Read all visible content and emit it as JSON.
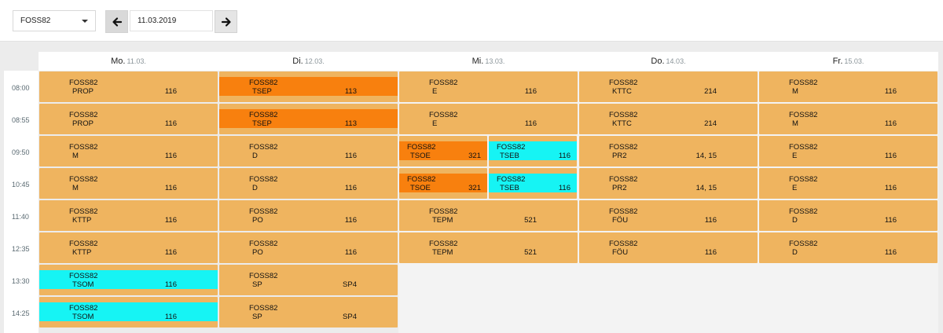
{
  "toolbar": {
    "class_select_value": "FOSS82",
    "date_value": "11.03.2019"
  },
  "days": [
    {
      "name": "Mo.",
      "date": "11.03."
    },
    {
      "name": "Di.",
      "date": "12.03."
    },
    {
      "name": "Mi.",
      "date": "13.03."
    },
    {
      "name": "Do.",
      "date": "14.03."
    },
    {
      "name": "Fr.",
      "date": "15.03."
    }
  ],
  "times": [
    "08:00",
    "08:55",
    "09:50",
    "10:45",
    "11:40",
    "12:35",
    "13:30",
    "14:25"
  ],
  "lessons": [
    {
      "day": 0,
      "slot": 0,
      "class": "FOSS82",
      "subject": "PROP",
      "room": "116",
      "color": ""
    },
    {
      "day": 0,
      "slot": 1,
      "class": "FOSS82",
      "subject": "PROP",
      "room": "116",
      "color": ""
    },
    {
      "day": 0,
      "slot": 2,
      "class": "FOSS82",
      "subject": "M",
      "room": "116",
      "color": ""
    },
    {
      "day": 0,
      "slot": 3,
      "class": "FOSS82",
      "subject": "M",
      "room": "116",
      "color": ""
    },
    {
      "day": 0,
      "slot": 4,
      "class": "FOSS82",
      "subject": "KTTP",
      "room": "116",
      "color": ""
    },
    {
      "day": 0,
      "slot": 5,
      "class": "FOSS82",
      "subject": "KTTP",
      "room": "116",
      "color": ""
    },
    {
      "day": 0,
      "slot": 6,
      "class": "FOSS82",
      "subject": "TSOM",
      "room": "116",
      "color": "cyan"
    },
    {
      "day": 0,
      "slot": 7,
      "class": "FOSS82",
      "subject": "TSOM",
      "room": "116",
      "color": "cyan"
    },
    {
      "day": 1,
      "slot": 0,
      "class": "FOSS82",
      "subject": "TSEP",
      "room": "113",
      "color": "orange"
    },
    {
      "day": 1,
      "slot": 1,
      "class": "FOSS82",
      "subject": "TSEP",
      "room": "113",
      "color": "orange"
    },
    {
      "day": 1,
      "slot": 2,
      "class": "FOSS82",
      "subject": "D",
      "room": "116",
      "color": ""
    },
    {
      "day": 1,
      "slot": 3,
      "class": "FOSS82",
      "subject": "D",
      "room": "116",
      "color": ""
    },
    {
      "day": 1,
      "slot": 4,
      "class": "FOSS82",
      "subject": "PO",
      "room": "116",
      "color": ""
    },
    {
      "day": 1,
      "slot": 5,
      "class": "FOSS82",
      "subject": "PO",
      "room": "116",
      "color": ""
    },
    {
      "day": 1,
      "slot": 6,
      "class": "FOSS82",
      "subject": "SP",
      "room": "SP4",
      "color": ""
    },
    {
      "day": 1,
      "slot": 7,
      "class": "FOSS82",
      "subject": "SP",
      "room": "SP4",
      "color": ""
    },
    {
      "day": 2,
      "slot": 0,
      "class": "FOSS82",
      "subject": "E",
      "room": "116",
      "color": ""
    },
    {
      "day": 2,
      "slot": 1,
      "class": "FOSS82",
      "subject": "E",
      "room": "116",
      "color": ""
    },
    {
      "day": 2,
      "slot": 2,
      "half": 0,
      "class": "FOSS82",
      "subject": "TSOE",
      "room": "321",
      "color": "orange"
    },
    {
      "day": 2,
      "slot": 2,
      "half": 1,
      "class": "FOSS82",
      "subject": "TSEB",
      "room": "116",
      "color": "cyan"
    },
    {
      "day": 2,
      "slot": 3,
      "half": 0,
      "class": "FOSS82",
      "subject": "TSOE",
      "room": "321",
      "color": "orange"
    },
    {
      "day": 2,
      "slot": 3,
      "half": 1,
      "class": "FOSS82",
      "subject": "TSEB",
      "room": "116",
      "color": "cyan"
    },
    {
      "day": 2,
      "slot": 4,
      "class": "FOSS82",
      "subject": "TEPM",
      "room": "521",
      "color": ""
    },
    {
      "day": 2,
      "slot": 5,
      "class": "FOSS82",
      "subject": "TEPM",
      "room": "521",
      "color": ""
    },
    {
      "day": 3,
      "slot": 0,
      "class": "FOSS82",
      "subject": "KTTC",
      "room": "214",
      "color": ""
    },
    {
      "day": 3,
      "slot": 1,
      "class": "FOSS82",
      "subject": "KTTC",
      "room": "214",
      "color": ""
    },
    {
      "day": 3,
      "slot": 2,
      "class": "FOSS82",
      "subject": "PR2",
      "room": "14, 15",
      "color": ""
    },
    {
      "day": 3,
      "slot": 3,
      "class": "FOSS82",
      "subject": "PR2",
      "room": "14, 15",
      "color": ""
    },
    {
      "day": 3,
      "slot": 4,
      "class": "FOSS82",
      "subject": "FÖU",
      "room": "116",
      "color": ""
    },
    {
      "day": 3,
      "slot": 5,
      "class": "FOSS82",
      "subject": "FÖU",
      "room": "116",
      "color": ""
    },
    {
      "day": 4,
      "slot": 0,
      "class": "FOSS82",
      "subject": "M",
      "room": "116",
      "color": ""
    },
    {
      "day": 4,
      "slot": 1,
      "class": "FOSS82",
      "subject": "M",
      "room": "116",
      "color": ""
    },
    {
      "day": 4,
      "slot": 2,
      "class": "FOSS82",
      "subject": "E",
      "room": "116",
      "color": ""
    },
    {
      "day": 4,
      "slot": 3,
      "class": "FOSS82",
      "subject": "E",
      "room": "116",
      "color": ""
    },
    {
      "day": 4,
      "slot": 4,
      "class": "FOSS82",
      "subject": "D",
      "room": "116",
      "color": ""
    },
    {
      "day": 4,
      "slot": 5,
      "class": "FOSS82",
      "subject": "D",
      "room": "116",
      "color": ""
    }
  ],
  "colors": {
    "lesson": "#efb45f",
    "orange": "#f8800e",
    "cyan": "#16f4f4"
  }
}
